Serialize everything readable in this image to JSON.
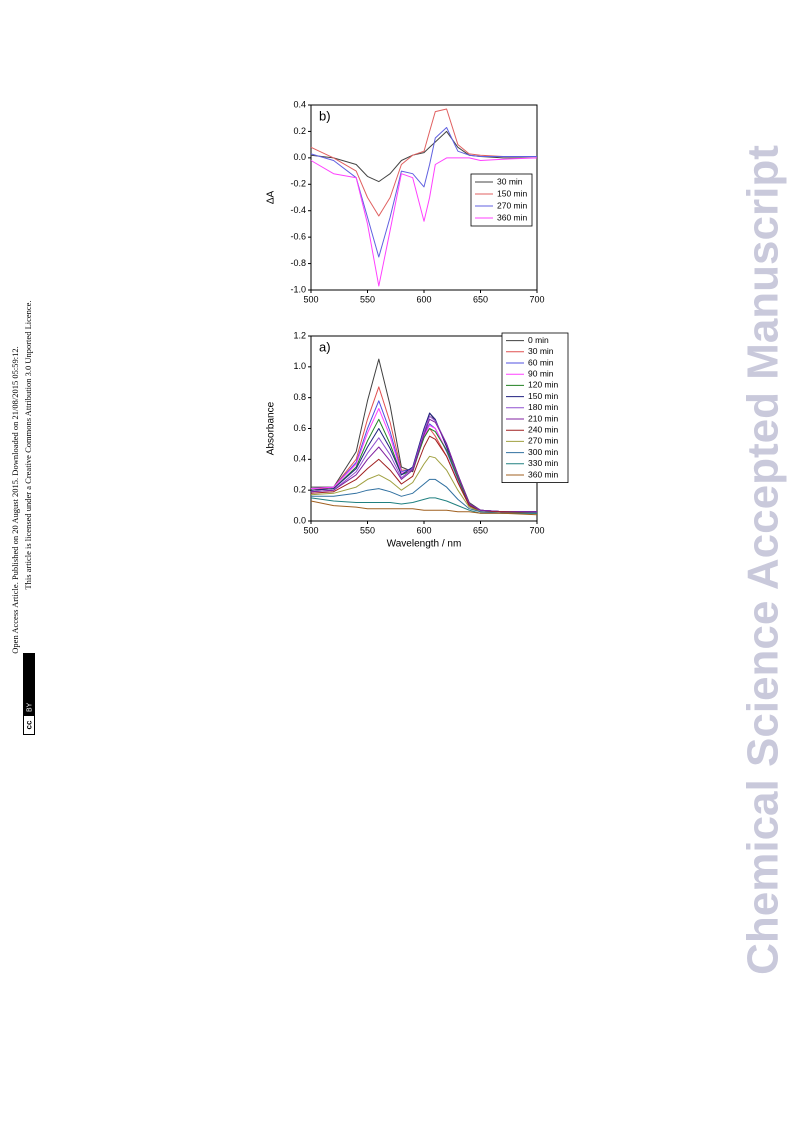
{
  "license": {
    "line1": "Open Access Article. Published on 20 August 2015. Downloaded on 21/08/2015 05:59:12.",
    "line2": "This article is licensed under a Creative Commons Attribution 3.0 Unported Licence.",
    "badge": [
      "cc",
      "BY"
    ]
  },
  "watermark": "Chemical Science Accepted Manuscript",
  "chart_data": [
    {
      "type": "line",
      "annotation": "b)",
      "ylabel": "ΔA",
      "x": [
        500,
        520,
        540,
        550,
        560,
        570,
        580,
        590,
        600,
        605,
        610,
        620,
        630,
        640,
        650,
        670,
        700
      ],
      "xlim": [
        500,
        700
      ],
      "xticks": [
        500,
        550,
        600,
        650,
        700
      ],
      "ylim": [
        -1.0,
        0.4
      ],
      "yticks": [
        0.4,
        0.2,
        {
          "value": 0,
          "label": "0.0"
        },
        -0.2,
        -0.4,
        -0.6,
        -0.8,
        {
          "value": -1,
          "label": "-1.0"
        }
      ],
      "legend": "right",
      "series": [
        {
          "name": "30 min",
          "color": "#444444",
          "values": [
            0.02,
            0.0,
            -0.05,
            -0.14,
            -0.18,
            -0.12,
            -0.02,
            0.02,
            0.04,
            0.08,
            0.12,
            0.2,
            0.08,
            0.02,
            0.01,
            0.0,
            0.0
          ]
        },
        {
          "name": "150 min",
          "color": "#e06060",
          "values": [
            0.08,
            0.0,
            -0.1,
            -0.3,
            -0.44,
            -0.3,
            -0.05,
            0.02,
            0.05,
            0.2,
            0.35,
            0.37,
            0.1,
            0.03,
            0.02,
            0.01,
            0.01
          ]
        },
        {
          "name": "270 min",
          "color": "#6060e0",
          "values": [
            0.03,
            -0.02,
            -0.15,
            -0.45,
            -0.75,
            -0.45,
            -0.1,
            -0.12,
            -0.22,
            -0.05,
            0.15,
            0.23,
            0.05,
            0.02,
            0.01,
            0.01,
            0.01
          ]
        },
        {
          "name": "360 min",
          "color": "#ff40ff",
          "values": [
            -0.02,
            -0.12,
            -0.15,
            -0.5,
            -0.97,
            -0.55,
            -0.12,
            -0.15,
            -0.48,
            -0.3,
            -0.05,
            0.0,
            0.0,
            0.0,
            -0.02,
            -0.01,
            0.0
          ]
        }
      ]
    },
    {
      "type": "line",
      "annotation": "a)",
      "ylabel": "Absorbance",
      "xlabel": "Wavelength / nm",
      "x": [
        500,
        520,
        540,
        550,
        560,
        570,
        580,
        590,
        600,
        605,
        610,
        620,
        630,
        640,
        650,
        670,
        700
      ],
      "xlim": [
        500,
        700
      ],
      "xticks": [
        500,
        550,
        600,
        650,
        700
      ],
      "ylim": [
        0,
        1.2
      ],
      "yticks": [
        {
          "value": 0,
          "label": "0.0"
        },
        0.2,
        0.4,
        0.6,
        0.8,
        {
          "value": 1,
          "label": "1.0"
        },
        1.2
      ],
      "legend": "upper right",
      "series": [
        {
          "name": "0 min",
          "color": "#404040",
          "values": [
            0.22,
            0.22,
            0.45,
            0.78,
            1.05,
            0.75,
            0.35,
            0.32,
            0.55,
            0.7,
            0.65,
            0.5,
            0.3,
            0.12,
            0.07,
            0.06,
            0.06
          ]
        },
        {
          "name": "30 min",
          "color": "#e05050",
          "values": [
            0.2,
            0.22,
            0.4,
            0.66,
            0.87,
            0.64,
            0.33,
            0.33,
            0.55,
            0.6,
            0.55,
            0.42,
            0.25,
            0.1,
            0.07,
            0.06,
            0.06
          ]
        },
        {
          "name": "60 min",
          "color": "#5050e0",
          "values": [
            0.21,
            0.22,
            0.38,
            0.6,
            0.78,
            0.58,
            0.32,
            0.34,
            0.56,
            0.63,
            0.6,
            0.45,
            0.27,
            0.1,
            0.07,
            0.06,
            0.06
          ]
        },
        {
          "name": "90 min",
          "color": "#ff40ff",
          "values": [
            0.21,
            0.22,
            0.37,
            0.57,
            0.73,
            0.55,
            0.31,
            0.33,
            0.55,
            0.62,
            0.6,
            0.46,
            0.28,
            0.1,
            0.07,
            0.06,
            0.06
          ]
        },
        {
          "name": "120 min",
          "color": "#208020",
          "values": [
            0.2,
            0.21,
            0.35,
            0.52,
            0.66,
            0.5,
            0.3,
            0.33,
            0.54,
            0.6,
            0.58,
            0.46,
            0.28,
            0.1,
            0.07,
            0.06,
            0.06
          ]
        },
        {
          "name": "150 min",
          "color": "#202080",
          "values": [
            0.2,
            0.21,
            0.34,
            0.48,
            0.6,
            0.47,
            0.3,
            0.35,
            0.6,
            0.7,
            0.66,
            0.48,
            0.3,
            0.11,
            0.07,
            0.06,
            0.06
          ]
        },
        {
          "name": "180 min",
          "color": "#9050d0",
          "values": [
            0.19,
            0.2,
            0.32,
            0.44,
            0.54,
            0.43,
            0.28,
            0.34,
            0.58,
            0.68,
            0.65,
            0.5,
            0.3,
            0.11,
            0.07,
            0.06,
            0.06
          ]
        },
        {
          "name": "210 min",
          "color": "#8020a0",
          "values": [
            0.19,
            0.2,
            0.3,
            0.4,
            0.48,
            0.39,
            0.27,
            0.33,
            0.56,
            0.66,
            0.64,
            0.5,
            0.3,
            0.11,
            0.07,
            0.06,
            0.06
          ]
        },
        {
          "name": "240 min",
          "color": "#a02020",
          "values": [
            0.18,
            0.19,
            0.27,
            0.34,
            0.4,
            0.33,
            0.24,
            0.29,
            0.48,
            0.55,
            0.53,
            0.42,
            0.25,
            0.1,
            0.06,
            0.06,
            0.05
          ]
        },
        {
          "name": "270 min",
          "color": "#a0a040",
          "values": [
            0.17,
            0.18,
            0.22,
            0.27,
            0.3,
            0.26,
            0.2,
            0.25,
            0.37,
            0.42,
            0.41,
            0.33,
            0.2,
            0.09,
            0.06,
            0.05,
            0.05
          ]
        },
        {
          "name": "300 min",
          "color": "#3070a0",
          "values": [
            0.16,
            0.16,
            0.18,
            0.2,
            0.21,
            0.19,
            0.16,
            0.18,
            0.24,
            0.27,
            0.27,
            0.22,
            0.14,
            0.08,
            0.06,
            0.05,
            0.05
          ]
        },
        {
          "name": "330 min",
          "color": "#208080",
          "values": [
            0.15,
            0.13,
            0.12,
            0.12,
            0.12,
            0.12,
            0.11,
            0.12,
            0.14,
            0.15,
            0.15,
            0.13,
            0.1,
            0.07,
            0.05,
            0.05,
            0.05
          ]
        },
        {
          "name": "360 min",
          "color": "#a06020",
          "values": [
            0.13,
            0.1,
            0.09,
            0.08,
            0.08,
            0.08,
            0.08,
            0.08,
            0.07,
            0.07,
            0.07,
            0.07,
            0.06,
            0.06,
            0.05,
            0.05,
            0.04
          ]
        }
      ]
    }
  ]
}
